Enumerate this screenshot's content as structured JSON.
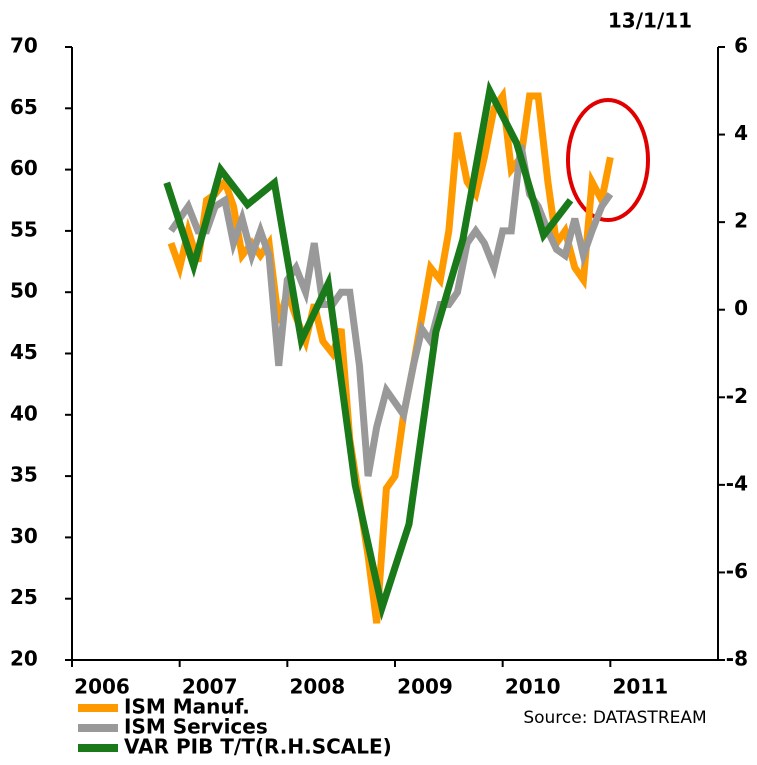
{
  "chart_data": {
    "type": "line",
    "date_label": "13/1/11",
    "source": "Source:  DATASTREAM",
    "xlim": [
      2006,
      2012
    ],
    "xticks": [
      2006,
      2007,
      2008,
      2009,
      2010,
      2011
    ],
    "ylim": [
      20,
      70
    ],
    "yticks": [
      20,
      25,
      30,
      35,
      40,
      45,
      50,
      55,
      60,
      65,
      70
    ],
    "y2lim": [
      -8,
      6
    ],
    "y2ticks": [
      -8,
      -6,
      -4,
      -2,
      0,
      2,
      4,
      6
    ],
    "series": [
      {
        "name": "ISM Manuf.",
        "color": "#ff9900",
        "x": [
          2006.92,
          2007.0,
          2007.08,
          2007.17,
          2007.25,
          2007.33,
          2007.42,
          2007.5,
          2007.58,
          2007.67,
          2007.75,
          2007.83,
          2007.92,
          2008.0,
          2008.08,
          2008.17,
          2008.25,
          2008.33,
          2008.42,
          2008.5,
          2008.58,
          2008.67,
          2008.75,
          2008.83,
          2008.92,
          2009.0,
          2009.08,
          2009.17,
          2009.25,
          2009.33,
          2009.42,
          2009.5,
          2009.58,
          2009.67,
          2009.75,
          2009.83,
          2009.92,
          2010.0,
          2010.08,
          2010.17,
          2010.25,
          2010.33,
          2010.42,
          2010.5,
          2010.58,
          2010.67,
          2010.75,
          2010.83,
          2010.92,
          2011.0
        ],
        "values": [
          54,
          52,
          55,
          52.5,
          57.5,
          58,
          59,
          57,
          53,
          54,
          53,
          54,
          47.5,
          50,
          48,
          46,
          49,
          46,
          45,
          47,
          38,
          33,
          28.5,
          23,
          34,
          35,
          40,
          44,
          48,
          52,
          51,
          55,
          63,
          59,
          58,
          61,
          65,
          66,
          60,
          61,
          66,
          66,
          59,
          54,
          55,
          52,
          51,
          59,
          57.5,
          61
        ]
      },
      {
        "name": "ISM Services",
        "color": "#999999",
        "x": [
          2006.92,
          2007.0,
          2007.08,
          2007.17,
          2007.25,
          2007.33,
          2007.42,
          2007.5,
          2007.58,
          2007.67,
          2007.75,
          2007.83,
          2007.92,
          2008.0,
          2008.08,
          2008.17,
          2008.25,
          2008.33,
          2008.42,
          2008.5,
          2008.58,
          2008.67,
          2008.75,
          2008.83,
          2008.92,
          2009.0,
          2009.08,
          2009.17,
          2009.25,
          2009.33,
          2009.42,
          2009.5,
          2009.58,
          2009.67,
          2009.75,
          2009.83,
          2009.92,
          2010.0,
          2010.08,
          2010.17,
          2010.25,
          2010.33,
          2010.42,
          2010.5,
          2010.58,
          2010.67,
          2010.75,
          2010.83,
          2010.92,
          2011.0
        ],
        "values": [
          55,
          56,
          57,
          55,
          55,
          57,
          57.5,
          54,
          56,
          53,
          55,
          53,
          44,
          51,
          52,
          50,
          54,
          49,
          49,
          50,
          50,
          44,
          35,
          39,
          42,
          41,
          40,
          44,
          47,
          46,
          49,
          49,
          50,
          54,
          55,
          54,
          52,
          55,
          55,
          62,
          58,
          57,
          55,
          53.5,
          53,
          56,
          53,
          55,
          57,
          58
        ]
      },
      {
        "name": "VAR PIB T/T(R.H.SCALE)",
        "color": "#1a7a1a",
        "axis": "y2",
        "x": [
          2006.88,
          2007.13,
          2007.38,
          2007.63,
          2007.88,
          2008.13,
          2008.38,
          2008.63,
          2008.88,
          2009.13,
          2009.38,
          2009.63,
          2009.88,
          2010.13,
          2010.38,
          2010.63
        ],
        "values": [
          2.9,
          1.0,
          3.2,
          2.4,
          2.9,
          -0.7,
          0.6,
          -4.0,
          -6.8,
          -4.9,
          -0.5,
          1.6,
          5.0,
          3.8,
          1.7,
          2.5
        ]
      }
    ]
  }
}
